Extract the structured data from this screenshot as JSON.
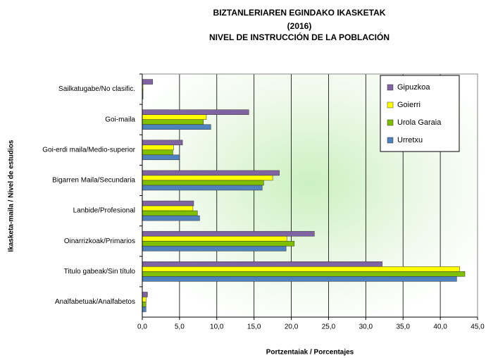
{
  "chart_data": {
    "type": "bar",
    "orientation": "horizontal",
    "title": [
      "BIZTANLERIAREN EGINDAKO IKASKETAK",
      "(2016)",
      "NIVEL DE INSTRUCCIÓN DE LA POBLACIÓN"
    ],
    "xlabel": "Portzentaiak / Porcentajes",
    "ylabel": "Ikasketa-maila / Nivel de estudios",
    "categories": [
      "Sailkatugabe/No clasific.",
      "Goi-maila",
      "Goi-erdi maila/Medio-superior",
      "Bigarren Maila/Secundaria",
      "Lanbide/Profesional",
      "Oinarrizkoak/Primarios",
      "Titulo gabeak/Sin título",
      "Analfabetuak/Analfabetos"
    ],
    "series": [
      {
        "name": "Gipuzkoa",
        "color": "#8064a2",
        "values": [
          1.4,
          14.3,
          5.4,
          18.4,
          6.9,
          23.1,
          32.2,
          0.7
        ]
      },
      {
        "name": "Goierri",
        "color": "#ffff00",
        "values": [
          0.1,
          8.6,
          4.2,
          17.5,
          6.8,
          19.4,
          42.6,
          0.5
        ]
      },
      {
        "name": "Urola Garaia",
        "color": "#7fbf00",
        "values": [
          0.1,
          8.2,
          4.1,
          16.3,
          7.4,
          20.4,
          43.3,
          0.5
        ]
      },
      {
        "name": "Urretxu",
        "color": "#4f81bd",
        "values": [
          0.1,
          9.2,
          5.0,
          16.1,
          7.7,
          19.3,
          42.2,
          0.5
        ]
      }
    ],
    "xlim": [
      0,
      45
    ],
    "xticks": [
      {
        "value": 0,
        "label": "0,0"
      },
      {
        "value": 5,
        "label": "5,0"
      },
      {
        "value": 10,
        "label": "10,0"
      },
      {
        "value": 15,
        "label": "15,0"
      },
      {
        "value": 20,
        "label": "20,0"
      },
      {
        "value": 25,
        "label": "25,0"
      },
      {
        "value": 30,
        "label": "30,0"
      },
      {
        "value": 35,
        "label": "35,0"
      },
      {
        "value": 40,
        "label": "40,0"
      },
      {
        "value": 45,
        "label": "45,0"
      }
    ],
    "grid": true,
    "legend": "top-right"
  }
}
